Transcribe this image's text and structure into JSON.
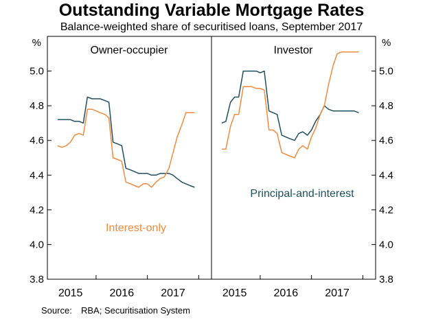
{
  "title": "Outstanding Variable Mortgage Rates",
  "subtitle": "Balance-weighted share of securitised loans, September 2017",
  "source": {
    "label": "Source:",
    "text": "RBA; Securitisation System"
  },
  "colors": {
    "principal_and_interest": "#1f4e5f",
    "interest_only": "#f28a3c"
  },
  "chart_data": [
    {
      "type": "line",
      "panel_title": "Owner-occupier",
      "ylabel": "%",
      "ylim": [
        3.8,
        5.2
      ],
      "yticks": [
        "3.8",
        "4.0",
        "4.2",
        "4.4",
        "4.6",
        "4.8",
        "5.0"
      ],
      "xlim": [
        2014.55,
        2017.75
      ],
      "xticks": [
        {
          "label": "2015",
          "value": 2015.0
        },
        {
          "label": "2016",
          "value": 2016.0
        },
        {
          "label": "2017",
          "value": 2017.0
        }
      ],
      "annotations": [
        "Interest-only"
      ],
      "grid": false,
      "series": [
        {
          "name": "Principal-and-interest",
          "color_key": "principal_and_interest",
          "x": [
            2014.75,
            2014.83,
            2014.92,
            2015.0,
            2015.08,
            2015.17,
            2015.25,
            2015.33,
            2015.42,
            2015.5,
            2015.58,
            2015.67,
            2015.75,
            2015.83,
            2015.92,
            2016.0,
            2016.08,
            2016.17,
            2016.25,
            2016.33,
            2016.42,
            2016.5,
            2016.58,
            2016.67,
            2016.75,
            2016.83,
            2016.92,
            2017.0,
            2017.08,
            2017.17,
            2017.25,
            2017.33,
            2017.42
          ],
          "y": [
            4.72,
            4.72,
            4.72,
            4.72,
            4.71,
            4.71,
            4.7,
            4.85,
            4.84,
            4.84,
            4.84,
            4.83,
            4.82,
            4.59,
            4.58,
            4.57,
            4.44,
            4.43,
            4.42,
            4.41,
            4.41,
            4.41,
            4.4,
            4.4,
            4.41,
            4.41,
            4.41,
            4.4,
            4.38,
            4.36,
            4.35,
            4.34,
            4.33
          ]
        },
        {
          "name": "Interest-only",
          "color_key": "interest_only",
          "x": [
            2014.75,
            2014.83,
            2014.92,
            2015.0,
            2015.08,
            2015.17,
            2015.25,
            2015.33,
            2015.42,
            2015.5,
            2015.58,
            2015.67,
            2015.75,
            2015.83,
            2015.92,
            2016.0,
            2016.08,
            2016.17,
            2016.25,
            2016.33,
            2016.42,
            2016.5,
            2016.58,
            2016.67,
            2016.75,
            2016.83,
            2016.92,
            2017.0,
            2017.08,
            2017.17,
            2017.25,
            2017.33,
            2017.42
          ],
          "y": [
            4.57,
            4.56,
            4.57,
            4.59,
            4.63,
            4.64,
            4.63,
            4.78,
            4.78,
            4.77,
            4.76,
            4.75,
            4.73,
            4.5,
            4.49,
            4.48,
            4.36,
            4.35,
            4.34,
            4.33,
            4.35,
            4.35,
            4.33,
            4.36,
            4.38,
            4.39,
            4.44,
            4.53,
            4.62,
            4.69,
            4.76,
            4.76,
            4.76
          ]
        }
      ]
    },
    {
      "type": "line",
      "panel_title": "Investor",
      "ylabel": "%",
      "ylim": [
        3.8,
        5.2
      ],
      "yticks": [
        "3.8",
        "4.0",
        "4.2",
        "4.4",
        "4.6",
        "4.8",
        "5.0"
      ],
      "xlim": [
        2014.55,
        2017.75
      ],
      "xticks": [
        {
          "label": "2015",
          "value": 2015.0
        },
        {
          "label": "2016",
          "value": 2016.0
        },
        {
          "label": "2017",
          "value": 2017.0
        }
      ],
      "annotations": [
        "Principal-and-interest"
      ],
      "grid": false,
      "series": [
        {
          "name": "Principal-and-interest",
          "color_key": "principal_and_interest",
          "x": [
            2014.75,
            2014.83,
            2014.92,
            2015.0,
            2015.08,
            2015.17,
            2015.25,
            2015.33,
            2015.42,
            2015.5,
            2015.58,
            2015.67,
            2015.75,
            2015.83,
            2015.92,
            2016.0,
            2016.08,
            2016.17,
            2016.25,
            2016.33,
            2016.42,
            2016.5,
            2016.58,
            2016.67,
            2016.75,
            2016.83,
            2016.92,
            2017.0,
            2017.08,
            2017.17,
            2017.25,
            2017.33,
            2017.42
          ],
          "y": [
            4.7,
            4.71,
            4.82,
            4.85,
            4.85,
            5.0,
            5.0,
            5.0,
            5.0,
            4.99,
            5.0,
            4.77,
            4.76,
            4.75,
            4.63,
            4.62,
            4.61,
            4.6,
            4.64,
            4.65,
            4.63,
            4.66,
            4.71,
            4.75,
            4.8,
            4.78,
            4.77,
            4.77,
            4.77,
            4.77,
            4.77,
            4.77,
            4.76
          ]
        },
        {
          "name": "Interest-only",
          "color_key": "interest_only",
          "x": [
            2014.75,
            2014.83,
            2014.92,
            2015.0,
            2015.08,
            2015.17,
            2015.25,
            2015.33,
            2015.42,
            2015.5,
            2015.58,
            2015.67,
            2015.75,
            2015.83,
            2015.92,
            2016.0,
            2016.08,
            2016.17,
            2016.25,
            2016.33,
            2016.42,
            2016.5,
            2016.58,
            2016.67,
            2016.75,
            2016.83,
            2016.92,
            2017.0,
            2017.08,
            2017.17,
            2017.25,
            2017.33,
            2017.42
          ],
          "y": [
            4.55,
            4.55,
            4.68,
            4.75,
            4.75,
            4.91,
            4.91,
            4.91,
            4.9,
            4.9,
            4.89,
            4.66,
            4.66,
            4.64,
            4.53,
            4.52,
            4.51,
            4.5,
            4.55,
            4.57,
            4.55,
            4.62,
            4.67,
            4.75,
            4.8,
            4.92,
            5.03,
            5.1,
            5.11,
            5.11,
            5.11,
            5.11,
            5.11
          ]
        }
      ]
    }
  ]
}
